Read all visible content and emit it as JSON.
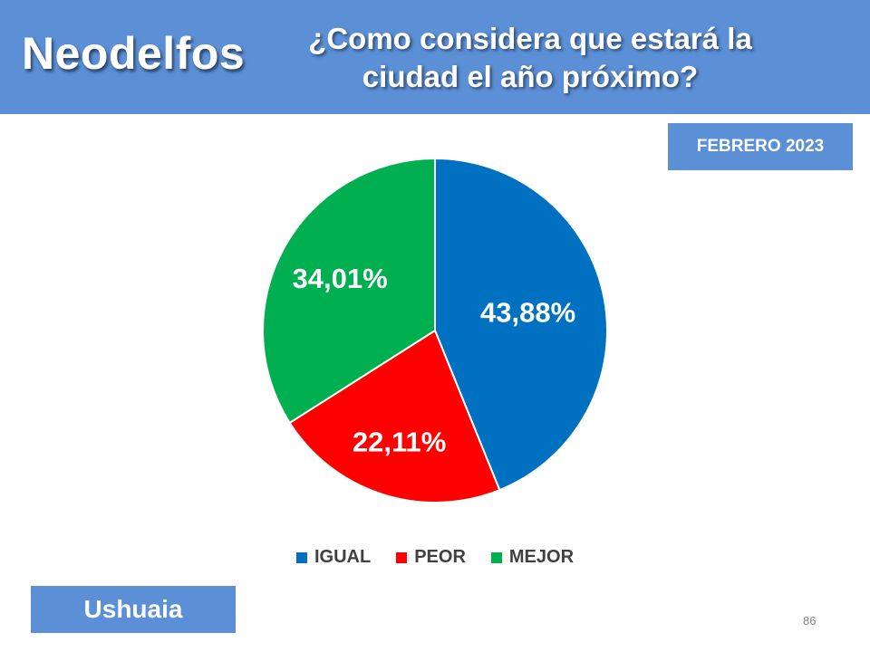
{
  "header": {
    "brand": "Neodelfos",
    "question": "¿Como considera que estará la ciudad el año próximo?"
  },
  "date_badge": "FEBRERO 2023",
  "city_badge": "Ushuaia",
  "page_number": "86",
  "colors": {
    "header_bg": "#5b8fd6",
    "igual": "#0070c0",
    "peor": "#ff0000",
    "mejor": "#00b050"
  },
  "chart_data": {
    "type": "pie",
    "title": "¿Como considera que estará la ciudad el año próximo?",
    "slices": [
      {
        "name": "IGUAL",
        "value": 43.88,
        "label": "43,88%",
        "color": "#0070c0"
      },
      {
        "name": "PEOR",
        "value": 22.11,
        "label": "22,11%",
        "color": "#ff0000"
      },
      {
        "name": "MEJOR",
        "value": 34.01,
        "label": "34,01%",
        "color": "#00b050"
      }
    ],
    "legend_position": "bottom",
    "start_angle": "12 o'clock",
    "direction": "clockwise"
  }
}
